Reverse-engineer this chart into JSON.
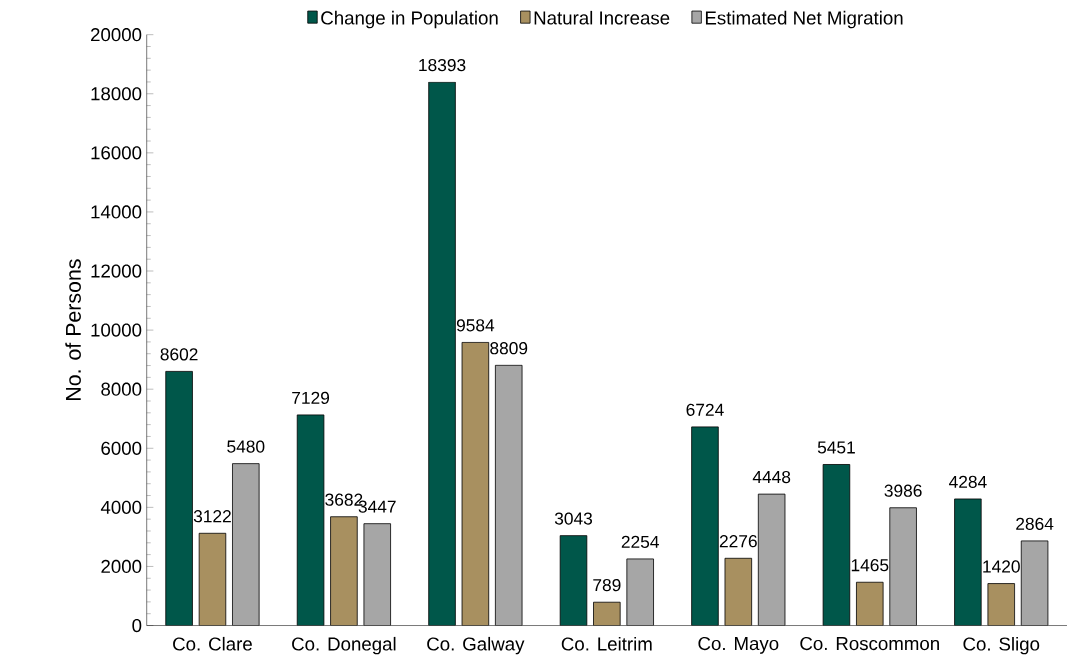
{
  "chart_data": {
    "type": "bar",
    "ylabel": "No. of Persons",
    "categories": [
      "Co. Clare",
      "Co. Donegal",
      "Co. Galway",
      "Co. Leitrim",
      "Co. Mayo",
      "Co. Roscommon",
      "Co. Sligo"
    ],
    "series": [
      {
        "name": "Change in Population",
        "color": "#00574a",
        "values": [
          8602,
          7129,
          18393,
          3043,
          6724,
          5451,
          4284
        ]
      },
      {
        "name": "Natural Increase",
        "color": "#a89060",
        "values": [
          3122,
          3682,
          9584,
          789,
          2276,
          1465,
          1420
        ]
      },
      {
        "name": "Estimated Net Migration",
        "color": "#a6a6a6",
        "values": [
          5480,
          3447,
          8809,
          2254,
          4448,
          3986,
          2864
        ]
      }
    ],
    "ylim": [
      0,
      20000
    ],
    "yticks": [
      0,
      2000,
      4000,
      6000,
      8000,
      10000,
      12000,
      14000,
      16000,
      18000,
      20000
    ],
    "data_labels": true,
    "legend": "top",
    "grid": false
  }
}
